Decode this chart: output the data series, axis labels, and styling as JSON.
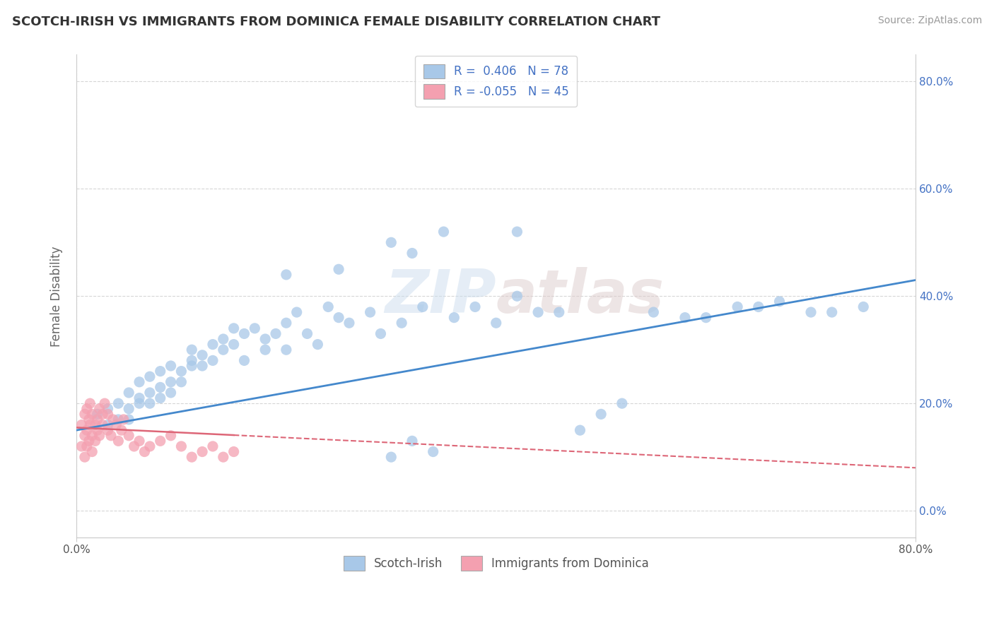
{
  "title": "SCOTCH-IRISH VS IMMIGRANTS FROM DOMINICA FEMALE DISABILITY CORRELATION CHART",
  "source": "Source: ZipAtlas.com",
  "ylabel": "Female Disability",
  "xlim": [
    0.0,
    0.8
  ],
  "ylim": [
    -0.05,
    0.85
  ],
  "y_ticks": [
    0.0,
    0.2,
    0.4,
    0.6,
    0.8
  ],
  "y_tick_labels": [
    "0.0%",
    "20.0%",
    "40.0%",
    "60.0%",
    "80.0%"
  ],
  "scotch_irish_R": 0.406,
  "scotch_irish_N": 78,
  "dominica_R": -0.055,
  "dominica_N": 45,
  "blue_color": "#a8c8e8",
  "blue_line_color": "#4488cc",
  "pink_color": "#f4a0b0",
  "pink_line_color": "#dd6677",
  "background_color": "#ffffff",
  "grid_color": "#cccccc",
  "title_color": "#333333",
  "source_color": "#999999",
  "blue_trend_start": 0.15,
  "blue_trend_end": 0.43,
  "pink_trend_start": 0.155,
  "pink_trend_end": 0.08,
  "scotch_irish_x": [
    0.02,
    0.03,
    0.03,
    0.04,
    0.04,
    0.05,
    0.05,
    0.05,
    0.06,
    0.06,
    0.06,
    0.07,
    0.07,
    0.07,
    0.08,
    0.08,
    0.08,
    0.09,
    0.09,
    0.09,
    0.1,
    0.1,
    0.11,
    0.11,
    0.11,
    0.12,
    0.12,
    0.13,
    0.13,
    0.14,
    0.14,
    0.15,
    0.15,
    0.16,
    0.16,
    0.17,
    0.18,
    0.18,
    0.19,
    0.2,
    0.2,
    0.21,
    0.22,
    0.23,
    0.24,
    0.25,
    0.26,
    0.28,
    0.29,
    0.3,
    0.31,
    0.32,
    0.33,
    0.34,
    0.36,
    0.38,
    0.4,
    0.42,
    0.44,
    0.46,
    0.48,
    0.5,
    0.52,
    0.55,
    0.58,
    0.6,
    0.63,
    0.65,
    0.67,
    0.7,
    0.72,
    0.75,
    0.3,
    0.35,
    0.2,
    0.25,
    0.32,
    0.42
  ],
  "scotch_irish_y": [
    0.18,
    0.16,
    0.19,
    0.17,
    0.2,
    0.19,
    0.22,
    0.17,
    0.21,
    0.2,
    0.24,
    0.22,
    0.2,
    0.25,
    0.23,
    0.21,
    0.26,
    0.24,
    0.22,
    0.27,
    0.26,
    0.24,
    0.28,
    0.27,
    0.3,
    0.29,
    0.27,
    0.31,
    0.28,
    0.32,
    0.3,
    0.31,
    0.34,
    0.33,
    0.28,
    0.34,
    0.32,
    0.3,
    0.33,
    0.35,
    0.3,
    0.37,
    0.33,
    0.31,
    0.38,
    0.36,
    0.35,
    0.37,
    0.33,
    0.1,
    0.35,
    0.13,
    0.38,
    0.11,
    0.36,
    0.38,
    0.35,
    0.4,
    0.37,
    0.37,
    0.15,
    0.18,
    0.2,
    0.37,
    0.36,
    0.36,
    0.38,
    0.38,
    0.39,
    0.37,
    0.37,
    0.38,
    0.5,
    0.52,
    0.44,
    0.45,
    0.48,
    0.52
  ],
  "dominica_x": [
    0.005,
    0.005,
    0.008,
    0.008,
    0.008,
    0.01,
    0.01,
    0.01,
    0.012,
    0.012,
    0.013,
    0.013,
    0.015,
    0.015,
    0.015,
    0.018,
    0.018,
    0.02,
    0.02,
    0.022,
    0.022,
    0.025,
    0.025,
    0.027,
    0.03,
    0.03,
    0.033,
    0.035,
    0.038,
    0.04,
    0.043,
    0.045,
    0.05,
    0.055,
    0.06,
    0.065,
    0.07,
    0.08,
    0.09,
    0.1,
    0.11,
    0.12,
    0.13,
    0.14,
    0.15
  ],
  "dominica_y": [
    0.12,
    0.16,
    0.14,
    0.18,
    0.1,
    0.15,
    0.19,
    0.12,
    0.17,
    0.13,
    0.16,
    0.2,
    0.14,
    0.18,
    0.11,
    0.16,
    0.13,
    0.17,
    0.15,
    0.19,
    0.14,
    0.18,
    0.16,
    0.2,
    0.15,
    0.18,
    0.14,
    0.17,
    0.16,
    0.13,
    0.15,
    0.17,
    0.14,
    0.12,
    0.13,
    0.11,
    0.12,
    0.13,
    0.14,
    0.12,
    0.1,
    0.11,
    0.12,
    0.1,
    0.11
  ]
}
